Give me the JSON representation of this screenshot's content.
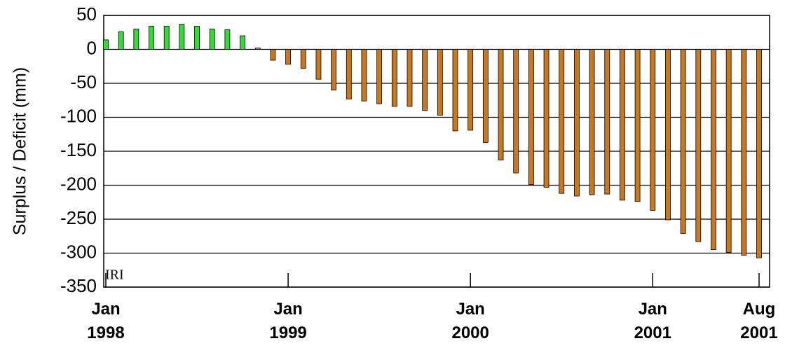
{
  "chart_data": {
    "type": "bar",
    "y_label": "Surplus / Deficit (mm)",
    "annotation": "IRI",
    "categories": [
      "Jan 1998",
      null,
      null,
      null,
      null,
      null,
      null,
      null,
      null,
      null,
      null,
      null,
      "Jan 1999",
      null,
      null,
      null,
      null,
      null,
      null,
      null,
      null,
      null,
      null,
      null,
      "Jan 2000",
      null,
      null,
      null,
      null,
      null,
      null,
      null,
      null,
      null,
      null,
      null,
      "Jan 2001",
      null,
      null,
      null,
      null,
      null,
      null,
      "Aug 2001"
    ],
    "values": [
      14,
      26,
      30,
      34,
      34,
      37,
      34,
      30,
      29,
      20,
      2,
      -16,
      -22,
      -28,
      -44,
      -60,
      -73,
      -76,
      -80,
      -84,
      -84,
      -90,
      -97,
      -120,
      -119,
      -137,
      -163,
      -182,
      -199,
      -203,
      -212,
      -216,
      -214,
      -213,
      -222,
      -224,
      -237,
      -251,
      -271,
      -283,
      -295,
      -299,
      -303,
      -307
    ],
    "positive_color": "#33dd33",
    "negative_color": "#c8781e",
    "ylim": [
      -350,
      50
    ],
    "yticks": [
      50,
      0,
      -50,
      -100,
      -150,
      -200,
      -250,
      -300,
      -350
    ],
    "grid": true
  }
}
